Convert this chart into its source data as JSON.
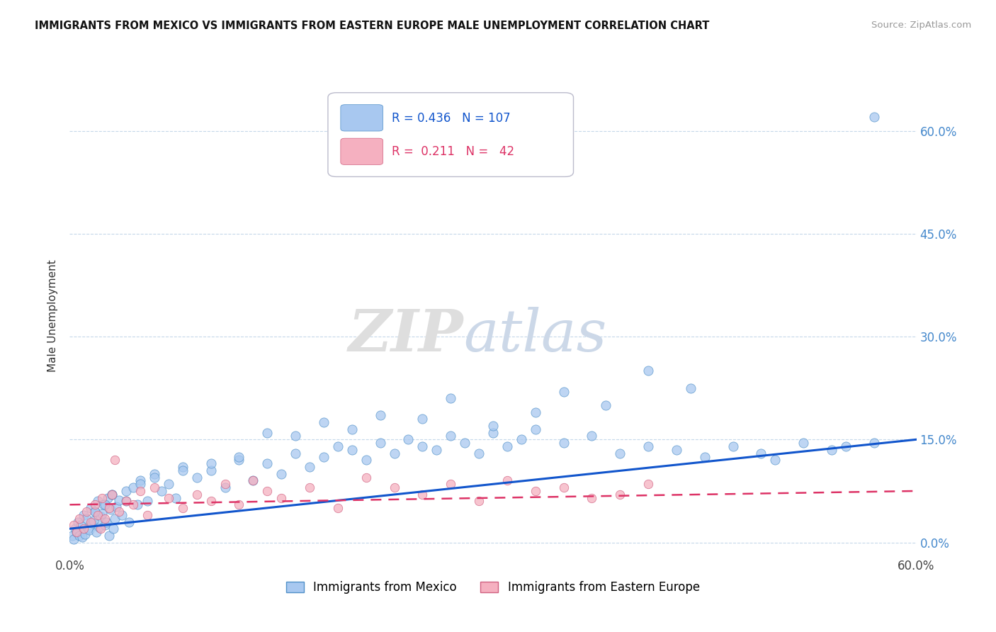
{
  "title": "IMMIGRANTS FROM MEXICO VS IMMIGRANTS FROM EASTERN EUROPE MALE UNEMPLOYMENT CORRELATION CHART",
  "source": "Source: ZipAtlas.com",
  "ylabel": "Male Unemployment",
  "legend_label1": "Immigrants from Mexico",
  "legend_label2": "Immigrants from Eastern Europe",
  "R1": "0.436",
  "N1": "107",
  "R2": "0.211",
  "N2": "42",
  "color_mexico": "#a8c8f0",
  "color_mexico_edge": "#5090c8",
  "color_eastern": "#f5b0c0",
  "color_eastern_edge": "#d06080",
  "color_line_mexico": "#1155cc",
  "color_line_eastern": "#dd3366",
  "ytick_labels": [
    "0.0%",
    "15.0%",
    "30.0%",
    "45.0%",
    "60.0%"
  ],
  "ytick_values": [
    0.0,
    15.0,
    30.0,
    45.0,
    60.0
  ],
  "xmin": 0.0,
  "xmax": 60.0,
  "ymin": 0.0,
  "ymax": 60.0,
  "mexico_x": [
    0.2,
    0.3,
    0.4,
    0.5,
    0.6,
    0.7,
    0.8,
    0.9,
    1.0,
    1.1,
    1.2,
    1.3,
    1.4,
    1.5,
    1.6,
    1.7,
    1.8,
    1.9,
    2.0,
    2.1,
    2.2,
    2.3,
    2.4,
    2.5,
    2.6,
    2.7,
    2.8,
    2.9,
    3.0,
    3.1,
    3.2,
    3.3,
    3.5,
    3.7,
    4.0,
    4.2,
    4.5,
    4.8,
    5.0,
    5.5,
    6.0,
    6.5,
    7.0,
    7.5,
    8.0,
    9.0,
    10.0,
    11.0,
    12.0,
    13.0,
    14.0,
    15.0,
    16.0,
    17.0,
    18.0,
    19.0,
    20.0,
    21.0,
    22.0,
    23.0,
    24.0,
    25.0,
    26.0,
    27.0,
    28.0,
    29.0,
    30.0,
    31.0,
    32.0,
    33.0,
    35.0,
    37.0,
    39.0,
    41.0,
    43.0,
    45.0,
    47.0,
    49.0,
    50.0,
    52.0,
    54.0,
    55.0,
    57.0,
    35.0,
    38.0,
    41.0,
    44.0,
    30.0,
    33.0,
    27.0,
    25.0,
    22.0,
    20.0,
    18.0,
    16.0,
    14.0,
    12.0,
    10.0,
    8.0,
    6.0,
    5.0,
    3.0,
    4.0,
    57.0,
    2.5,
    1.8
  ],
  "mexico_y": [
    1.0,
    0.5,
    2.0,
    1.5,
    3.0,
    1.0,
    2.5,
    0.8,
    4.0,
    1.2,
    3.5,
    2.0,
    1.8,
    5.0,
    2.8,
    3.2,
    4.5,
    1.5,
    6.0,
    2.2,
    3.8,
    4.2,
    5.5,
    2.5,
    3.0,
    6.5,
    1.0,
    4.8,
    7.0,
    2.0,
    3.5,
    5.2,
    6.2,
    4.0,
    7.5,
    3.0,
    8.0,
    5.5,
    9.0,
    6.0,
    10.0,
    7.5,
    8.5,
    6.5,
    11.0,
    9.5,
    10.5,
    8.0,
    12.0,
    9.0,
    11.5,
    10.0,
    13.0,
    11.0,
    12.5,
    14.0,
    13.5,
    12.0,
    14.5,
    13.0,
    15.0,
    14.0,
    13.5,
    15.5,
    14.5,
    13.0,
    16.0,
    14.0,
    15.0,
    16.5,
    14.5,
    15.5,
    13.0,
    14.0,
    13.5,
    12.5,
    14.0,
    13.0,
    12.0,
    14.5,
    13.5,
    14.0,
    14.5,
    22.0,
    20.0,
    25.0,
    22.5,
    17.0,
    19.0,
    21.0,
    18.0,
    18.5,
    16.5,
    17.5,
    15.5,
    16.0,
    12.5,
    11.5,
    10.5,
    9.5,
    8.5,
    7.0,
    6.0,
    62.0,
    5.5,
    4.5
  ],
  "eastern_x": [
    0.3,
    0.5,
    0.7,
    1.0,
    1.2,
    1.5,
    1.8,
    2.0,
    2.3,
    2.5,
    2.8,
    3.0,
    3.5,
    4.0,
    4.5,
    5.0,
    5.5,
    6.0,
    7.0,
    8.0,
    9.0,
    10.0,
    11.0,
    12.0,
    13.0,
    14.0,
    15.0,
    17.0,
    19.0,
    21.0,
    23.0,
    25.0,
    27.0,
    29.0,
    31.0,
    33.0,
    35.0,
    37.0,
    39.0,
    41.0,
    2.2,
    3.2
  ],
  "eastern_y": [
    2.5,
    1.5,
    3.5,
    2.0,
    4.5,
    3.0,
    5.5,
    4.0,
    6.5,
    3.5,
    5.0,
    7.0,
    4.5,
    6.0,
    5.5,
    7.5,
    4.0,
    8.0,
    6.5,
    5.0,
    7.0,
    6.0,
    8.5,
    5.5,
    9.0,
    7.5,
    6.5,
    8.0,
    5.0,
    9.5,
    8.0,
    7.0,
    8.5,
    6.0,
    9.0,
    7.5,
    8.0,
    6.5,
    7.0,
    8.5,
    2.0,
    12.0
  ]
}
